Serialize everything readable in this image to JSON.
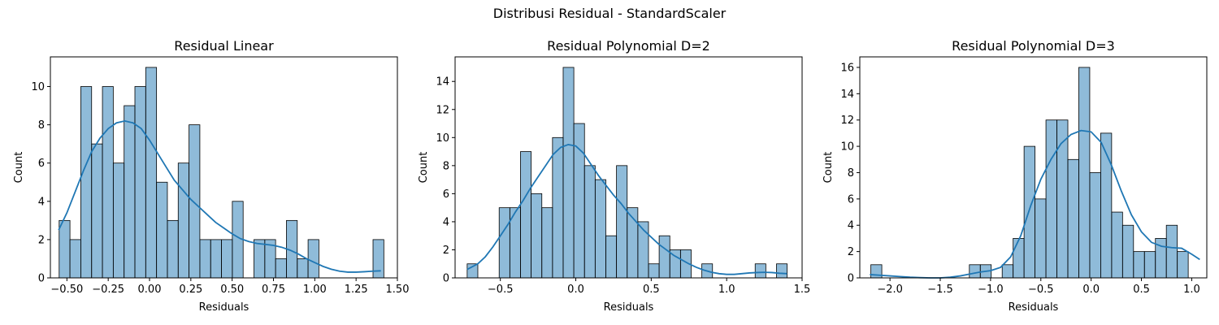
{
  "figure": {
    "suptitle": "Distribusi Residual - StandardScaler"
  },
  "chart_data": [
    {
      "type": "bar",
      "title": "Residual Linear",
      "xlabel": "Residuals",
      "ylabel": "Count",
      "xlim": [
        -0.6,
        1.5
      ],
      "ylim": [
        0,
        11.55
      ],
      "xticks": [
        -0.5,
        -0.25,
        0.0,
        0.25,
        0.5,
        0.75,
        1.0,
        1.25,
        1.5
      ],
      "xtick_labels": [
        "−0.50",
        "−0.25",
        "0.00",
        "0.25",
        "0.50",
        "0.75",
        "1.00",
        "1.25",
        "1.50"
      ],
      "yticks": [
        0,
        2,
        4,
        6,
        8,
        10
      ],
      "ytick_labels": [
        "0",
        "2",
        "4",
        "6",
        "8",
        "10"
      ],
      "bin_start": -0.547,
      "bin_width": 0.0655,
      "counts": [
        3,
        2,
        10,
        7,
        10,
        6,
        9,
        10,
        11,
        5,
        3,
        6,
        8,
        2,
        2,
        2,
        4,
        0,
        2,
        2,
        1,
        3,
        1,
        2,
        0,
        0,
        0,
        0,
        0,
        2
      ],
      "kde_x": [
        -0.55,
        -0.5,
        -0.45,
        -0.4,
        -0.35,
        -0.3,
        -0.25,
        -0.2,
        -0.15,
        -0.1,
        -0.05,
        0.0,
        0.05,
        0.1,
        0.15,
        0.2,
        0.25,
        0.3,
        0.35,
        0.4,
        0.45,
        0.5,
        0.55,
        0.6,
        0.65,
        0.7,
        0.75,
        0.8,
        0.85,
        0.9,
        0.95,
        1.0,
        1.05,
        1.1,
        1.15,
        1.2,
        1.25,
        1.3,
        1.35,
        1.4
      ],
      "kde_y": [
        2.5,
        3.4,
        4.5,
        5.6,
        6.6,
        7.3,
        7.8,
        8.1,
        8.2,
        8.1,
        7.8,
        7.2,
        6.5,
        5.8,
        5.1,
        4.6,
        4.1,
        3.7,
        3.3,
        2.9,
        2.6,
        2.3,
        2.05,
        1.9,
        1.8,
        1.75,
        1.7,
        1.6,
        1.45,
        1.25,
        1.0,
        0.8,
        0.6,
        0.45,
        0.35,
        0.3,
        0.3,
        0.32,
        0.35,
        0.37
      ]
    },
    {
      "type": "bar",
      "title": "Residual Polynomial D=2",
      "xlabel": "Residuals",
      "ylabel": "Count",
      "xlim": [
        -0.8,
        1.5
      ],
      "ylim": [
        0,
        15.75
      ],
      "xticks": [
        -0.5,
        0.0,
        0.5,
        1.0,
        1.5
      ],
      "xtick_labels": [
        "−0.5",
        "0.0",
        "0.5",
        "1.0",
        "1.5"
      ],
      "yticks": [
        0,
        2,
        4,
        6,
        8,
        10,
        12,
        14
      ],
      "ytick_labels": [
        "0",
        "2",
        "4",
        "6",
        "8",
        "10",
        "12",
        "14"
      ],
      "bin_start": -0.72,
      "bin_width": 0.0707,
      "counts": [
        1,
        0,
        0,
        5,
        5,
        9,
        6,
        5,
        10,
        15,
        11,
        8,
        7,
        3,
        8,
        5,
        4,
        1,
        3,
        2,
        2,
        0,
        1,
        0,
        0,
        0,
        0,
        1,
        0,
        1
      ],
      "kde_x": [
        -0.72,
        -0.65,
        -0.6,
        -0.55,
        -0.5,
        -0.45,
        -0.4,
        -0.35,
        -0.3,
        -0.25,
        -0.2,
        -0.15,
        -0.1,
        -0.05,
        0.0,
        0.05,
        0.1,
        0.15,
        0.2,
        0.25,
        0.3,
        0.35,
        0.4,
        0.45,
        0.5,
        0.55,
        0.6,
        0.65,
        0.7,
        0.75,
        0.8,
        0.85,
        0.9,
        0.95,
        1.0,
        1.05,
        1.1,
        1.15,
        1.2,
        1.25,
        1.3,
        1.35,
        1.4
      ],
      "kde_y": [
        0.6,
        1.0,
        1.5,
        2.2,
        3.0,
        3.8,
        4.7,
        5.5,
        6.4,
        7.2,
        8.0,
        8.8,
        9.3,
        9.5,
        9.4,
        8.9,
        8.1,
        7.3,
        6.6,
        5.9,
        5.3,
        4.6,
        4.0,
        3.4,
        2.9,
        2.4,
        2.0,
        1.6,
        1.3,
        1.0,
        0.75,
        0.55,
        0.4,
        0.3,
        0.25,
        0.25,
        0.3,
        0.35,
        0.38,
        0.4,
        0.38,
        0.33,
        0.3
      ]
    },
    {
      "type": "bar",
      "title": "Residual Polynomial D=3",
      "xlabel": "Residuals",
      "ylabel": "Count",
      "xlim": [
        -2.3,
        1.15
      ],
      "ylim": [
        0,
        16.8
      ],
      "xticks": [
        -2.0,
        -1.5,
        -1.0,
        -0.5,
        0.0,
        0.5,
        1.0
      ],
      "xtick_labels": [
        "−2.0",
        "−1.5",
        "−1.0",
        "−0.5",
        "0.0",
        "0.5",
        "1.0"
      ],
      "yticks": [
        0,
        2,
        4,
        6,
        8,
        10,
        12,
        14,
        16
      ],
      "ytick_labels": [
        "0",
        "2",
        "4",
        "6",
        "8",
        "10",
        "12",
        "14",
        "16"
      ],
      "bin_start": -2.19,
      "bin_width": 0.1088,
      "counts": [
        1,
        0,
        0,
        0,
        0,
        0,
        0,
        0,
        0,
        1,
        1,
        0,
        1,
        3,
        10,
        6,
        12,
        12,
        9,
        16,
        8,
        11,
        5,
        4,
        2,
        2,
        3,
        4,
        2,
        0
      ],
      "kde_x": [
        -2.2,
        -2.1,
        -2.0,
        -1.9,
        -1.8,
        -1.7,
        -1.6,
        -1.5,
        -1.4,
        -1.3,
        -1.2,
        -1.1,
        -1.0,
        -0.9,
        -0.8,
        -0.7,
        -0.6,
        -0.5,
        -0.4,
        -0.3,
        -0.2,
        -0.1,
        0.0,
        0.1,
        0.2,
        0.3,
        0.4,
        0.5,
        0.6,
        0.7,
        0.8,
        0.9,
        1.0,
        1.08
      ],
      "kde_y": [
        0.25,
        0.2,
        0.15,
        0.1,
        0.05,
        0.02,
        0.0,
        0.0,
        0.05,
        0.15,
        0.3,
        0.45,
        0.55,
        0.8,
        1.6,
        3.2,
        5.5,
        7.5,
        9.0,
        10.2,
        10.9,
        11.2,
        11.1,
        10.3,
        8.6,
        6.6,
        4.8,
        3.5,
        2.7,
        2.4,
        2.3,
        2.25,
        1.8,
        1.4
      ]
    }
  ]
}
